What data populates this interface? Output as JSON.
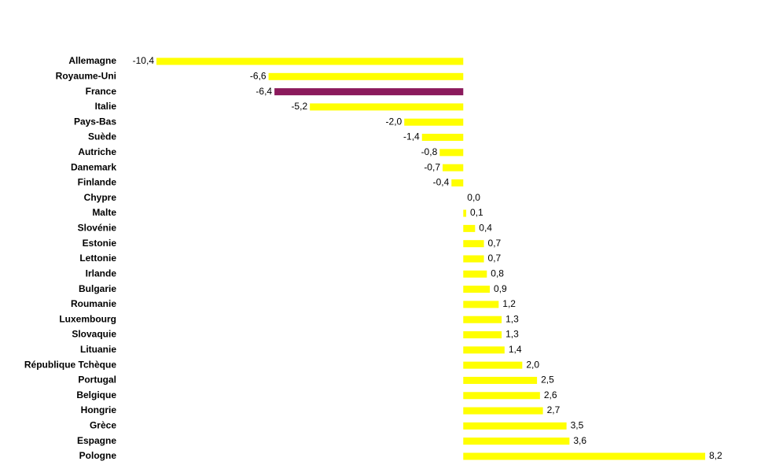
{
  "chart_data": {
    "type": "hbar",
    "categories": [
      "Allemagne",
      "Royaume-Uni",
      "France",
      "Italie",
      "Pays-Bas",
      "Suède",
      "Autriche",
      "Danemark",
      "Finlande",
      "Chypre",
      "Malte",
      "Slovénie",
      "Estonie",
      "Lettonie",
      "Irlande",
      "Bulgarie",
      "Roumanie",
      "Luxembourg",
      "Slovaquie",
      "Lituanie",
      "République Tchèque",
      "Portugal",
      "Belgique",
      "Hongrie",
      "Grèce",
      "Espagne",
      "Pologne"
    ],
    "values": [
      -10.4,
      -6.6,
      -6.4,
      -5.2,
      -2.0,
      -1.4,
      -0.8,
      -0.7,
      -0.4,
      0.0,
      0.1,
      0.4,
      0.7,
      0.7,
      0.8,
      0.9,
      1.2,
      1.3,
      1.3,
      1.4,
      2.0,
      2.5,
      2.6,
      2.7,
      3.5,
      3.6,
      8.2
    ],
    "value_labels": [
      "-10,4",
      "-6,6",
      "-6,4",
      "-5,2",
      "-2,0",
      "-1,4",
      "-0,8",
      "-0,7",
      "-0,4",
      "0,0",
      "0,1",
      "0,4",
      "0,7",
      "0,7",
      "0,8",
      "0,9",
      "1,2",
      "1,3",
      "1,3",
      "1,4",
      "2,0",
      "2,5",
      "2,6",
      "2,7",
      "3,5",
      "3,6",
      "8,2"
    ],
    "colors": [
      "#ffff00",
      "#ffff00",
      "#8b1a5c",
      "#ffff00",
      "#ffff00",
      "#ffff00",
      "#ffff00",
      "#ffff00",
      "#ffff00",
      "#ffff00",
      "#ffff00",
      "#ffff00",
      "#ffff00",
      "#ffff00",
      "#ffff00",
      "#ffff00",
      "#ffff00",
      "#ffff00",
      "#ffff00",
      "#ffff00",
      "#ffff00",
      "#ffff00",
      "#ffff00",
      "#ffff00",
      "#ffff00",
      "#ffff00",
      "#ffff00"
    ]
  }
}
